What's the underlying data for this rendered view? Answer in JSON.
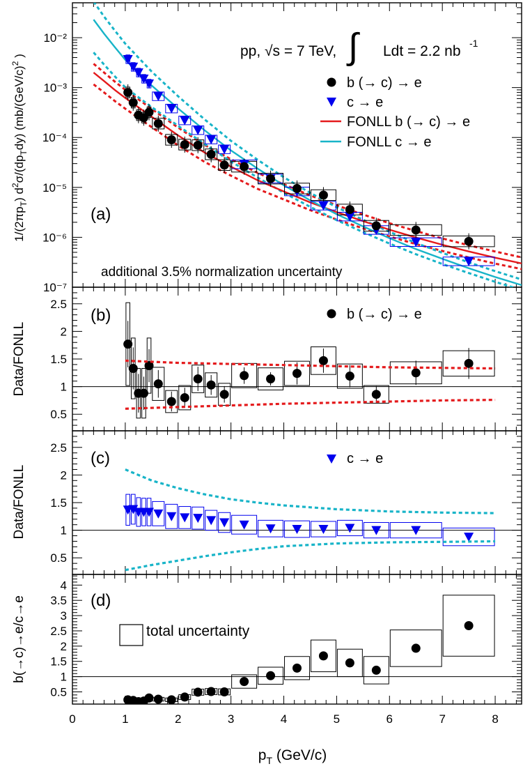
{
  "chart_data": [
    {
      "type": "scatter",
      "panel_label": "(a)",
      "yscale": "log",
      "ylabel": "1/(2πp_T) d²σ/(dp_T dy) (mb/(GeV/c)²)",
      "ylim": [
        1e-07,
        0.05
      ],
      "xlim": [
        0,
        8.5
      ],
      "y_ticks": [
        "10⁻⁷",
        "10⁻⁶",
        "10⁻⁵",
        "10⁻⁴",
        "10⁻³",
        "10⁻²"
      ],
      "annotation_top": "pp, √s = 7 TeV, ∫Ldt = 2.2 nb⁻¹",
      "annotation_bottom": "additional 3.5% normalization uncertainty",
      "legend": [
        "b (→ c) → e",
        "c → e",
        "FONLL b (→ c) → e",
        "FONLL c → e"
      ],
      "series": [
        {
          "name": "b (→ c) → e",
          "marker": "circle",
          "color": "#000000",
          "x": [
            1.05,
            1.15,
            1.25,
            1.35,
            1.45,
            1.625,
            1.875,
            2.125,
            2.375,
            2.625,
            2.875,
            3.25,
            3.75,
            4.25,
            4.75,
            5.25,
            5.75,
            6.5,
            7.5
          ],
          "y": [
            0.0008,
            0.0005,
            0.00028,
            0.00025,
            0.00032,
            0.00019,
            9e-05,
            7.2e-05,
            7e-05,
            4.6e-05,
            2.8e-05,
            2.6e-05,
            1.5e-05,
            9.5e-06,
            7e-06,
            3.6e-06,
            1.7e-06,
            1.4e-06,
            8.3e-07
          ]
        },
        {
          "name": "c → e",
          "marker": "triangle-down",
          "color": "#0000ee",
          "x": [
            1.05,
            1.15,
            1.25,
            1.35,
            1.45,
            1.625,
            1.875,
            2.125,
            2.375,
            2.625,
            2.875,
            3.25,
            3.75,
            4.25,
            4.75,
            5.25,
            5.75,
            6.5,
            7.5
          ],
          "y": [
            0.0037,
            0.0026,
            0.002,
            0.0015,
            0.0012,
            0.00067,
            0.00038,
            0.00022,
            0.00014,
            9.1e-05,
            5.8e-05,
            2.9e-05,
            1.5e-05,
            8.3e-06,
            4.3e-06,
            2.6e-06,
            1.4e-06,
            8e-07,
            3.3e-07
          ]
        },
        {
          "name": "FONLL b (→ c) → e",
          "line": "solid",
          "color": "#e41a1c",
          "x": [
            0.4,
            0.6,
            0.8,
            1,
            1.5,
            2,
            2.5,
            3,
            3.5,
            4,
            4.5,
            5,
            5.5,
            6,
            6.5,
            7,
            7.5,
            8,
            8.5
          ],
          "y": [
            0.002,
            0.00135,
            0.0009,
            0.00062,
            0.00026,
            0.00011,
            5e-05,
            2.6e-05,
            1.4e-05,
            8.3e-06,
            5e-06,
            3.2e-06,
            2.1e-06,
            1.42e-06,
            9.9e-07,
            7.1e-07,
            5.2e-07,
            3.9e-07,
            3e-07
          ]
        },
        {
          "name": "FONLL c → e",
          "line": "solid",
          "color": "#18b4c8",
          "x": [
            0.4,
            0.6,
            0.8,
            1,
            1.5,
            2,
            2.5,
            3,
            3.5,
            4,
            4.5,
            5,
            5.5,
            6,
            6.5,
            7,
            7.5,
            8,
            8.5
          ],
          "y": [
            0.023,
            0.012,
            0.0065,
            0.0036,
            0.0011,
            0.00038,
            0.00014,
            5.5e-05,
            2.4e-05,
            1.1e-05,
            5.5e-06,
            2.9e-06,
            1.65e-06,
            9.6e-07,
            5.8e-07,
            3.7e-07,
            2.4e-07,
            1.6e-07,
            1.1e-07
          ]
        }
      ]
    },
    {
      "type": "scatter",
      "panel_label": "(b)",
      "ylabel": "Data/FONLL",
      "ylim": [
        0.2,
        2.8
      ],
      "y_ticks": [
        "0.5",
        "1",
        "1.5",
        "2",
        "2.5"
      ],
      "legend": [
        "b (→ c) → e"
      ],
      "series": [
        {
          "name": "b (→ c) → e",
          "marker": "circle",
          "color": "#000000",
          "x": [
            1.05,
            1.15,
            1.25,
            1.35,
            1.45,
            1.625,
            1.875,
            2.125,
            2.375,
            2.625,
            2.875,
            3.25,
            3.75,
            4.25,
            4.75,
            5.25,
            5.75,
            6.5,
            7.5
          ],
          "y": [
            1.77,
            1.33,
            0.88,
            0.88,
            1.38,
            1.05,
            0.73,
            0.8,
            1.14,
            1.03,
            0.86,
            1.2,
            1.14,
            1.24,
            1.47,
            1.19,
            0.86,
            1.25,
            1.42
          ]
        },
        {
          "name": "FONLL uncertainty upper",
          "line": "dashed",
          "color": "#e41a1c",
          "x": [
            1,
            2,
            3,
            4,
            5,
            6,
            7,
            8
          ],
          "y": [
            1.47,
            1.43,
            1.41,
            1.39,
            1.37,
            1.35,
            1.34,
            1.33
          ]
        },
        {
          "name": "FONLL uncertainty lower",
          "line": "dashed",
          "color": "#e41a1c",
          "x": [
            1,
            2,
            3,
            4,
            5,
            6,
            7,
            8
          ],
          "y": [
            0.6,
            0.63,
            0.66,
            0.69,
            0.71,
            0.73,
            0.75,
            0.76
          ]
        }
      ]
    },
    {
      "type": "scatter",
      "panel_label": "(c)",
      "ylabel": "Data/FONLL",
      "ylim": [
        0.2,
        2.8
      ],
      "y_ticks": [
        "0.5",
        "1",
        "1.5",
        "2",
        "2.5"
      ],
      "legend": [
        "c → e"
      ],
      "series": [
        {
          "name": "c → e",
          "marker": "triangle-down",
          "color": "#0000ee",
          "x": [
            1.05,
            1.15,
            1.25,
            1.35,
            1.45,
            1.625,
            1.875,
            2.125,
            2.375,
            2.625,
            2.875,
            3.25,
            3.75,
            4.25,
            4.75,
            5.25,
            5.75,
            6.5,
            7.5
          ],
          "y": [
            1.37,
            1.38,
            1.33,
            1.33,
            1.33,
            1.3,
            1.25,
            1.23,
            1.22,
            1.18,
            1.14,
            1.1,
            1.03,
            1.02,
            1.02,
            1.04,
            1.0,
            1.0,
            0.88
          ]
        },
        {
          "name": "FONLL uncertainty upper",
          "line": "dashed",
          "color": "#18b4c8",
          "x": [
            1,
            1.5,
            2,
            2.5,
            3,
            3.5,
            4,
            5,
            6,
            7,
            8
          ],
          "y": [
            2.1,
            1.9,
            1.76,
            1.65,
            1.56,
            1.5,
            1.45,
            1.38,
            1.34,
            1.32,
            1.31
          ]
        },
        {
          "name": "FONLL uncertainty lower",
          "line": "dashed",
          "color": "#18b4c8",
          "x": [
            1,
            1.5,
            2,
            2.5,
            3,
            3.5,
            4,
            5,
            6,
            7,
            8
          ],
          "y": [
            0.28,
            0.37,
            0.45,
            0.53,
            0.6,
            0.66,
            0.71,
            0.76,
            0.78,
            0.79,
            0.8
          ]
        }
      ]
    },
    {
      "type": "scatter",
      "panel_label": "(d)",
      "ylabel": "b(→c)→e/c→e",
      "xlabel": "p_T (GeV/c)",
      "ylim": [
        0.1,
        4.35
      ],
      "xlim": [
        0,
        8.5
      ],
      "x_ticks": [
        "0",
        "1",
        "2",
        "3",
        "4",
        "5",
        "6",
        "7",
        "8"
      ],
      "y_ticks": [
        "0.5",
        "1",
        "1.5",
        "2",
        "2.5",
        "3",
        "3.5",
        "4"
      ],
      "legend": [
        "total uncertainty"
      ],
      "series": [
        {
          "name": "b(→c)→e/c→e",
          "marker": "circle",
          "color": "#000000",
          "x": [
            1.05,
            1.15,
            1.25,
            1.35,
            1.45,
            1.625,
            1.875,
            2.125,
            2.375,
            2.625,
            2.875,
            3.25,
            3.75,
            4.25,
            4.75,
            5.25,
            5.75,
            6.5,
            7.5
          ],
          "y": [
            0.24,
            0.22,
            0.18,
            0.2,
            0.3,
            0.26,
            0.24,
            0.33,
            0.49,
            0.51,
            0.5,
            0.84,
            1.03,
            1.28,
            1.68,
            1.45,
            1.21,
            1.93,
            2.67
          ]
        }
      ]
    }
  ]
}
